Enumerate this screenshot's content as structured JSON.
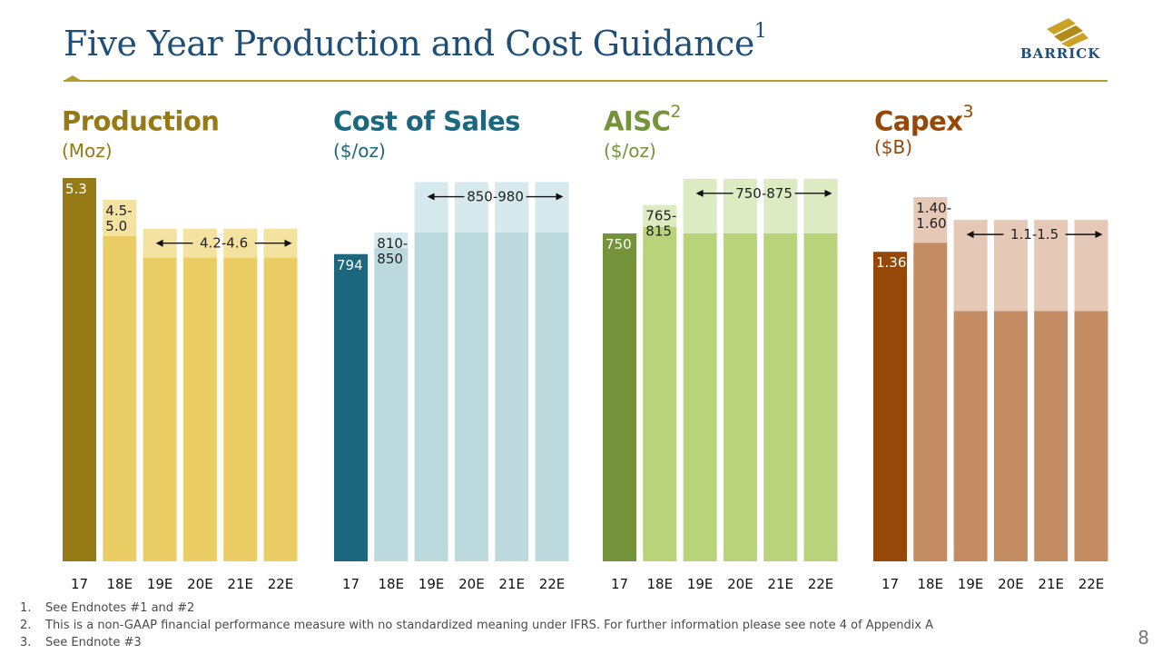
{
  "slide": {
    "title": "Five Year Production and Cost Guidance",
    "title_sup": "1",
    "logo_text": "BARRICK",
    "page_number": "8"
  },
  "footnotes": [
    {
      "num": "1.",
      "text": "See Endnotes #1 and #2"
    },
    {
      "num": "2.",
      "text": "This is a non-GAAP financial performance measure with no standardized meaning under IFRS. For further information please see note 4 of Appendix A"
    },
    {
      "num": "3.",
      "text": "See Endnote #3"
    }
  ],
  "colors": {
    "title": "#1f4e79",
    "production_dark": "#957a15",
    "production_light": "#ebcd66",
    "production_pale": "#f4e3a0",
    "cost_dark": "#1b677e",
    "cost_light": "#bcdadd",
    "cost_pale": "#d6e9ec",
    "aisc_dark": "#74933a",
    "aisc_light": "#b9d37a",
    "aisc_pale": "#dcebc2",
    "capex_dark": "#964808",
    "capex_light": "#c48c62",
    "capex_pale": "#e5c8b5"
  },
  "chart_data": [
    {
      "type": "bar",
      "title": "Production",
      "title_sup": "",
      "unit": "(Moz)",
      "title_color": "#957a15",
      "unit_color": "#957a15",
      "categories": [
        "17",
        "18E",
        "19E",
        "20E",
        "21E",
        "22E"
      ],
      "ylim": [
        0,
        5.35
      ],
      "actual": {
        "category": "17",
        "value": 5.3,
        "label": "5.3"
      },
      "ranges": [
        {
          "categories": [
            "18E"
          ],
          "low": 4.5,
          "high": 5.0,
          "label": "4.5-\n5.0"
        },
        {
          "categories": [
            "19E",
            "20E",
            "21E",
            "22E"
          ],
          "low": 4.2,
          "high": 4.6,
          "label": "4.2-4.6"
        }
      ]
    },
    {
      "type": "bar",
      "title": "Cost of Sales",
      "title_sup": "",
      "unit": "($/oz)",
      "title_color": "#1b677e",
      "unit_color": "#1b677e",
      "categories": [
        "17",
        "18E",
        "19E",
        "20E",
        "21E",
        "22E"
      ],
      "ylim": [
        0,
        1000
      ],
      "actual": {
        "category": "17",
        "value": 794,
        "label": "794"
      },
      "ranges": [
        {
          "categories": [
            "18E"
          ],
          "low": 810,
          "high": 850,
          "label": "810-\n850"
        },
        {
          "categories": [
            "19E",
            "20E",
            "21E",
            "22E"
          ],
          "low": 850,
          "high": 980,
          "label": "850-980"
        }
      ]
    },
    {
      "type": "bar",
      "title": "AISC",
      "title_sup": "2",
      "unit": "($/oz)",
      "title_color": "#74933a",
      "unit_color": "#74933a",
      "categories": [
        "17",
        "18E",
        "19E",
        "20E",
        "21E",
        "22E"
      ],
      "ylim": [
        0,
        885
      ],
      "actual": {
        "category": "17",
        "value": 750,
        "label": "750"
      },
      "ranges": [
        {
          "categories": [
            "18E"
          ],
          "low": 765,
          "high": 815,
          "label": "765-\n815"
        },
        {
          "categories": [
            "19E",
            "20E",
            "21E",
            "22E"
          ],
          "low": 750,
          "high": 875,
          "label": "750-875"
        }
      ]
    },
    {
      "type": "bar",
      "title": "Capex",
      "title_sup": "3",
      "unit": "($B)",
      "title_color": "#964808",
      "unit_color": "#964808",
      "categories": [
        "17",
        "18E",
        "19E",
        "20E",
        "21E",
        "22E"
      ],
      "ylim": [
        0,
        1.7
      ],
      "actual": {
        "category": "17",
        "value": 1.36,
        "label": "1.36"
      },
      "ranges": [
        {
          "categories": [
            "18E"
          ],
          "low": 1.4,
          "high": 1.6,
          "label": "1.40-\n1.60"
        },
        {
          "categories": [
            "19E",
            "20E",
            "21E",
            "22E"
          ],
          "low": 1.1,
          "high": 1.5,
          "label": "1.1-1.5"
        }
      ]
    }
  ]
}
